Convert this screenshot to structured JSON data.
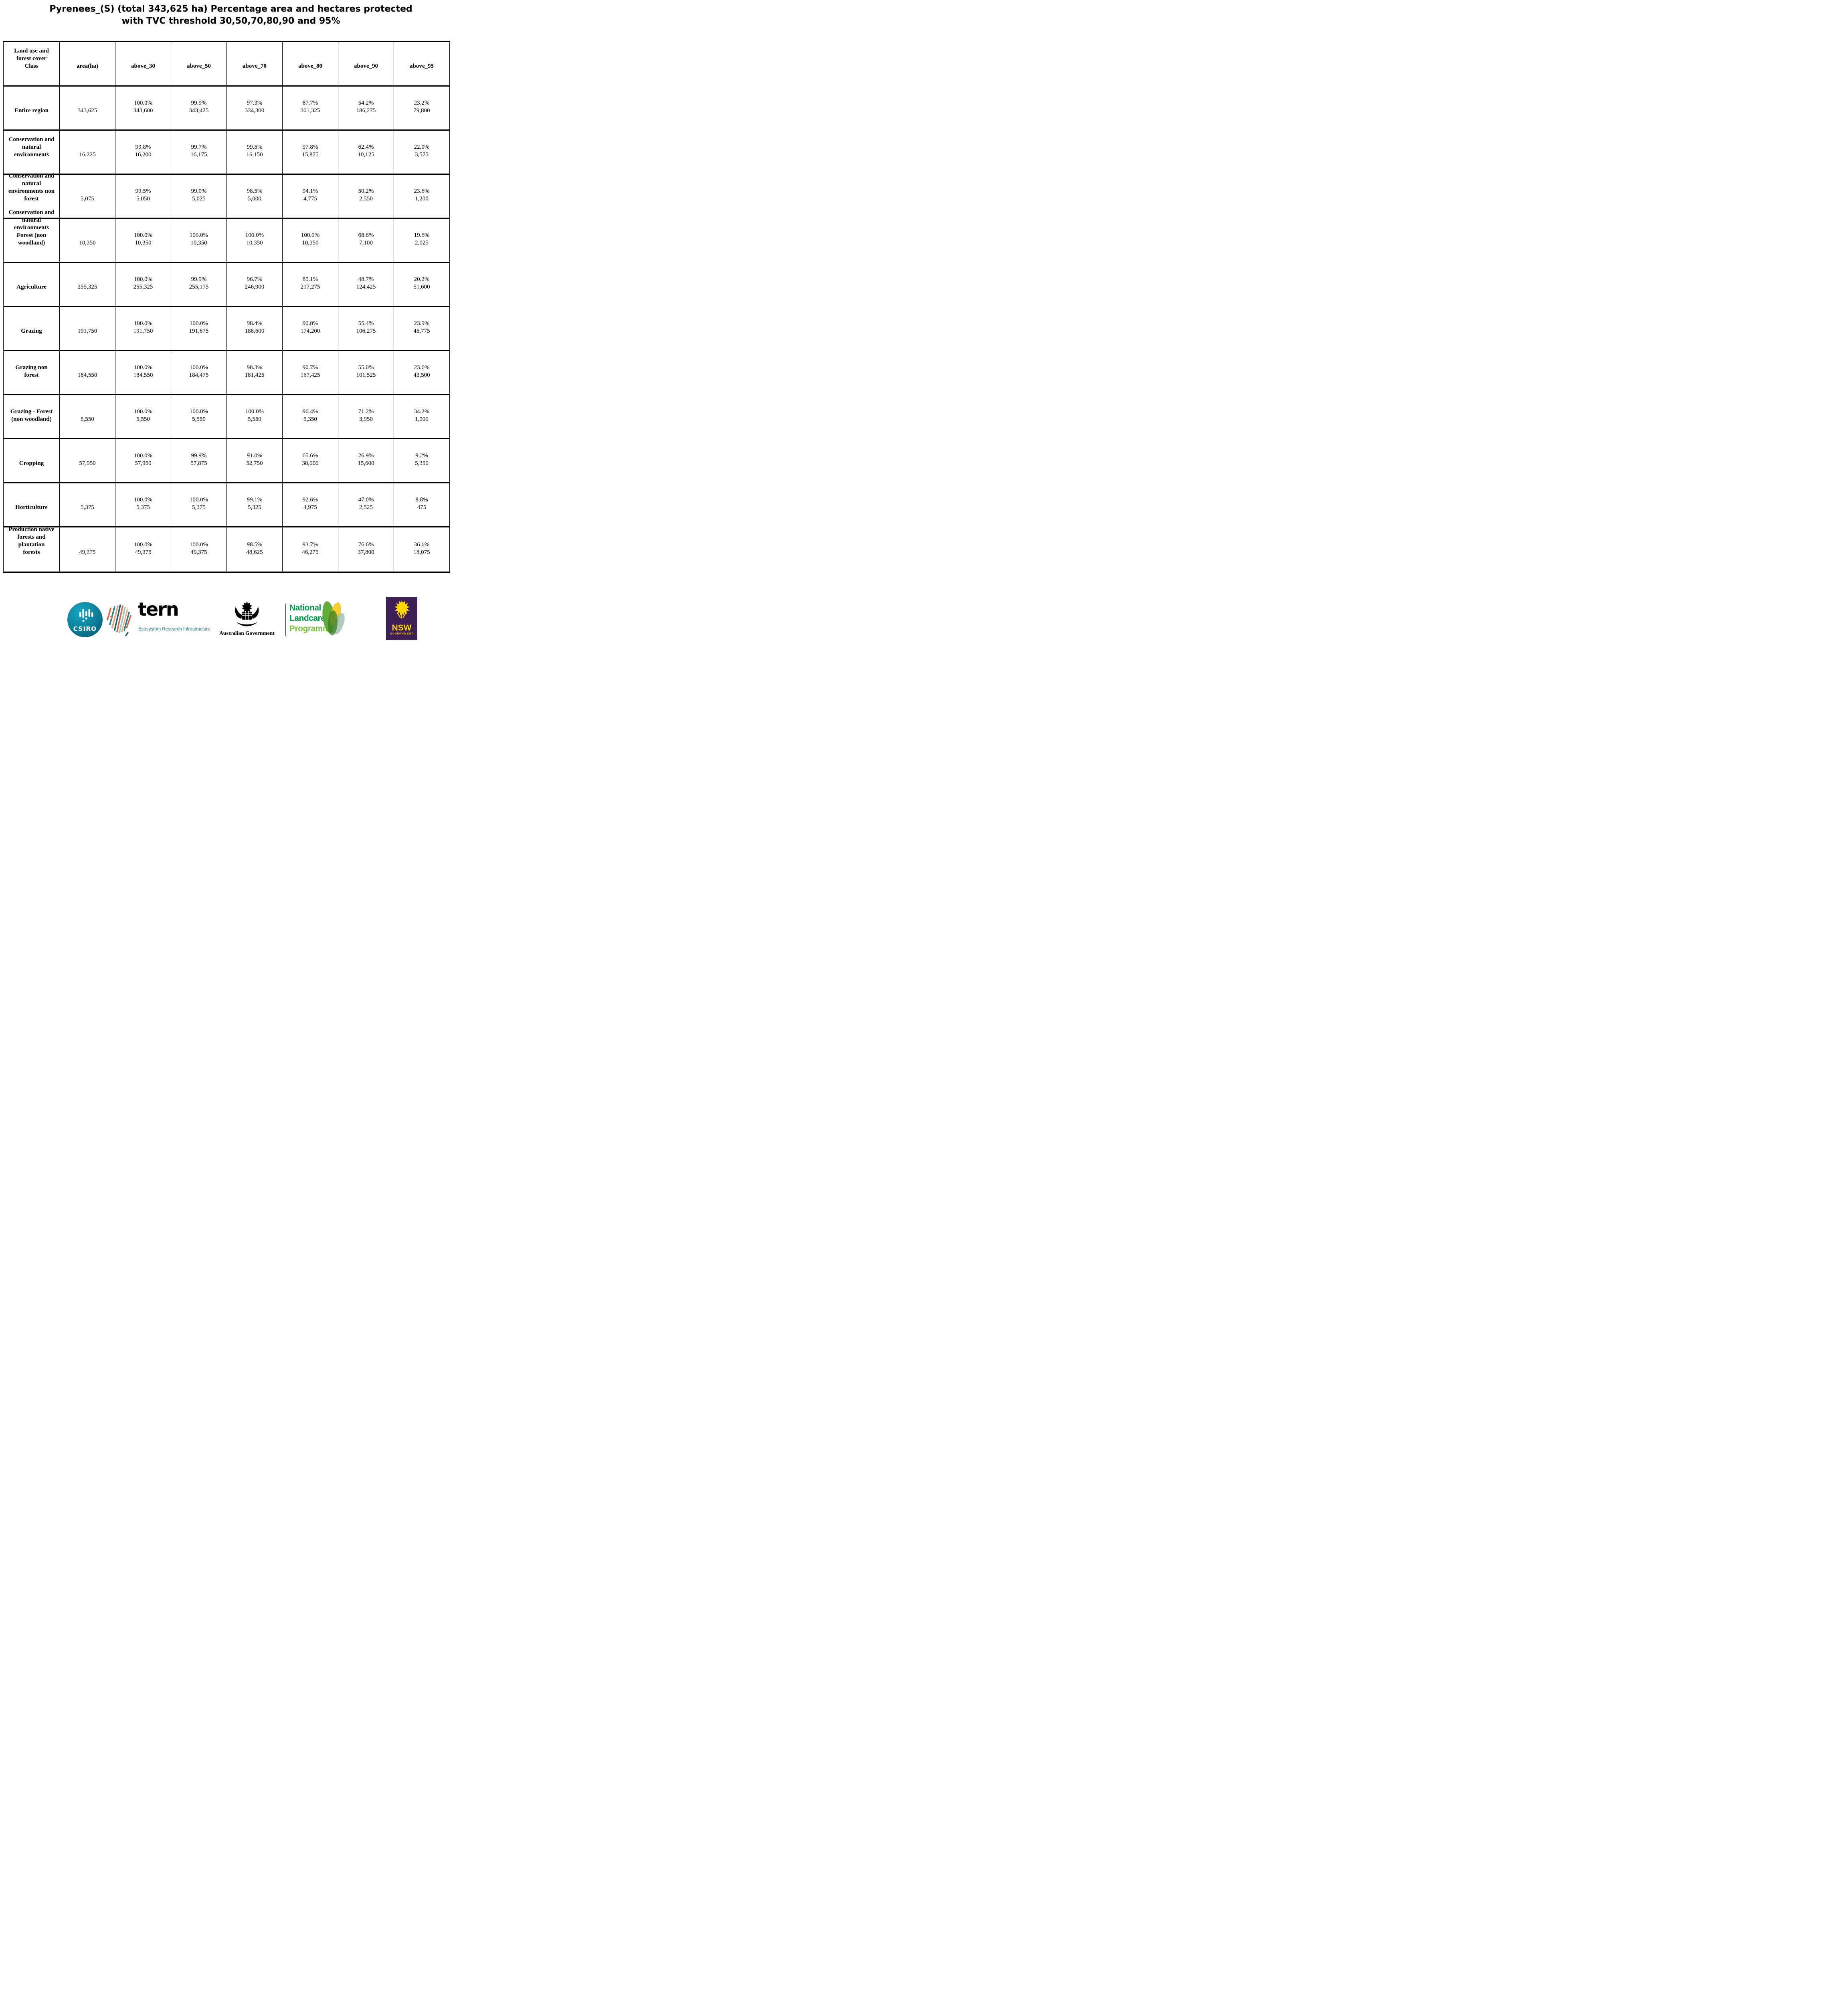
{
  "title": {
    "line1": "Pyrenees_(S) (total 343,625 ha) Percentage area and hectares protected",
    "line2": "with TVC  threshold 30,50,70,80,90 and 95%"
  },
  "chart_data": {
    "type": "table",
    "title": "Pyrenees_(S) (total 343,625 ha) Percentage area and hectares protected with TVC threshold 30,50,70,80,90 and 95%",
    "columns": [
      "Land use and forest cover Class",
      "area(ha)",
      "above_30",
      "above_50",
      "above_70",
      "above_80",
      "above_90",
      "above_95"
    ],
    "header_col0_lines": [
      "Land use and",
      "forest cover",
      "Class"
    ],
    "rows": [
      {
        "label_lines": [
          "Entire region"
        ],
        "area": "343,625",
        "cells": [
          {
            "pct": "100.0%",
            "ha": "343,600"
          },
          {
            "pct": "99.9%",
            "ha": "343,425"
          },
          {
            "pct": "97.3%",
            "ha": "334,300"
          },
          {
            "pct": "87.7%",
            "ha": "301,325"
          },
          {
            "pct": "54.2%",
            "ha": "186,275"
          },
          {
            "pct": "23.2%",
            "ha": "79,800"
          }
        ]
      },
      {
        "label_lines": [
          "Conservation and",
          "natural",
          "environments"
        ],
        "area": "16,225",
        "cells": [
          {
            "pct": "99.8%",
            "ha": "16,200"
          },
          {
            "pct": "99.7%",
            "ha": "16,175"
          },
          {
            "pct": "99.5%",
            "ha": "16,150"
          },
          {
            "pct": "97.8%",
            "ha": "15,875"
          },
          {
            "pct": "62.4%",
            "ha": "10,125"
          },
          {
            "pct": "22.0%",
            "ha": "3,575"
          }
        ]
      },
      {
        "label_lines": [
          "Conservation and",
          "natural",
          "environments non",
          "forest"
        ],
        "area": "5,075",
        "cells": [
          {
            "pct": "99.5%",
            "ha": "5,050"
          },
          {
            "pct": "99.0%",
            "ha": "5,025"
          },
          {
            "pct": "98.5%",
            "ha": "5,000"
          },
          {
            "pct": "94.1%",
            "ha": "4,775"
          },
          {
            "pct": "50.2%",
            "ha": "2,550"
          },
          {
            "pct": "23.6%",
            "ha": "1,200"
          }
        ]
      },
      {
        "label_lines": [
          "Conservation and",
          "natural",
          "environments",
          "Forest (non",
          "woodland)"
        ],
        "area": "10,350",
        "cells": [
          {
            "pct": "100.0%",
            "ha": "10,350"
          },
          {
            "pct": "100.0%",
            "ha": "10,350"
          },
          {
            "pct": "100.0%",
            "ha": "10,350"
          },
          {
            "pct": "100.0%",
            "ha": "10,350"
          },
          {
            "pct": "68.6%",
            "ha": "7,100"
          },
          {
            "pct": "19.6%",
            "ha": "2,025"
          }
        ]
      },
      {
        "label_lines": [
          "Agriculture"
        ],
        "area": "255,325",
        "cells": [
          {
            "pct": "100.0%",
            "ha": "255,325"
          },
          {
            "pct": "99.9%",
            "ha": "255,175"
          },
          {
            "pct": "96.7%",
            "ha": "246,900"
          },
          {
            "pct": "85.1%",
            "ha": "217,275"
          },
          {
            "pct": "48.7%",
            "ha": "124,425"
          },
          {
            "pct": "20.2%",
            "ha": "51,600"
          }
        ]
      },
      {
        "label_lines": [
          "Grazing"
        ],
        "area": "191,750",
        "cells": [
          {
            "pct": "100.0%",
            "ha": "191,750"
          },
          {
            "pct": "100.0%",
            "ha": "191,675"
          },
          {
            "pct": "98.4%",
            "ha": "188,600"
          },
          {
            "pct": "90.8%",
            "ha": "174,200"
          },
          {
            "pct": "55.4%",
            "ha": "106,275"
          },
          {
            "pct": "23.9%",
            "ha": "45,775"
          }
        ]
      },
      {
        "label_lines": [
          "Grazing non",
          "forest"
        ],
        "area": "184,550",
        "cells": [
          {
            "pct": "100.0%",
            "ha": "184,550"
          },
          {
            "pct": "100.0%",
            "ha": "184,475"
          },
          {
            "pct": "98.3%",
            "ha": "181,425"
          },
          {
            "pct": "90.7%",
            "ha": "167,425"
          },
          {
            "pct": "55.0%",
            "ha": "101,525"
          },
          {
            "pct": "23.6%",
            "ha": "43,500"
          }
        ]
      },
      {
        "label_lines": [
          "Grazing - Forest",
          "(non woodland)"
        ],
        "area": "5,550",
        "cells": [
          {
            "pct": "100.0%",
            "ha": "5,550"
          },
          {
            "pct": "100.0%",
            "ha": "5,550"
          },
          {
            "pct": "100.0%",
            "ha": "5,550"
          },
          {
            "pct": "96.4%",
            "ha": "5,350"
          },
          {
            "pct": "71.2%",
            "ha": "3,950"
          },
          {
            "pct": "34.2%",
            "ha": "1,900"
          }
        ]
      },
      {
        "label_lines": [
          "Cropping"
        ],
        "area": "57,950",
        "cells": [
          {
            "pct": "100.0%",
            "ha": "57,950"
          },
          {
            "pct": "99.9%",
            "ha": "57,875"
          },
          {
            "pct": "91.0%",
            "ha": "52,750"
          },
          {
            "pct": "65.6%",
            "ha": "38,000"
          },
          {
            "pct": "26.9%",
            "ha": "15,600"
          },
          {
            "pct": "9.2%",
            "ha": "5,350"
          }
        ]
      },
      {
        "label_lines": [
          "Horticulture"
        ],
        "area": "5,375",
        "cells": [
          {
            "pct": "100.0%",
            "ha": "5,375"
          },
          {
            "pct": "100.0%",
            "ha": "5,375"
          },
          {
            "pct": "99.1%",
            "ha": "5,325"
          },
          {
            "pct": "92.6%",
            "ha": "4,975"
          },
          {
            "pct": "47.0%",
            "ha": "2,525"
          },
          {
            "pct": "8.8%",
            "ha": "475"
          }
        ]
      },
      {
        "label_lines": [
          "Production native",
          "forests and",
          "plantation",
          "forests"
        ],
        "area": "49,375",
        "cells": [
          {
            "pct": "100.0%",
            "ha": "49,375"
          },
          {
            "pct": "100.0%",
            "ha": "49,375"
          },
          {
            "pct": "98.5%",
            "ha": "48,625"
          },
          {
            "pct": "93.7%",
            "ha": "46,275"
          },
          {
            "pct": "76.6%",
            "ha": "37,800"
          },
          {
            "pct": "36.6%",
            "ha": "18,075"
          }
        ]
      }
    ]
  },
  "footer": {
    "csiro_label": "CSIRO",
    "tern_wordmark": "tern",
    "tern_tagline": "Ecosystem Research Infrastructure",
    "ausgov_label": "Australian Government",
    "landcare_line1": "National",
    "landcare_line2": "Landcare",
    "landcare_line3": "Programme",
    "nsw_label": "NSW",
    "nsw_sub": "GOVERNMENT",
    "colors": {
      "csiro_teal": "#0e7f99",
      "tern_dark": "#17404c",
      "tern_teal": "#127482",
      "landcare_green": "#009a48",
      "landcare_light": "#7dc242",
      "nsw_purple": "#3d1e55",
      "nsw_yellow": "#ffd500"
    }
  }
}
